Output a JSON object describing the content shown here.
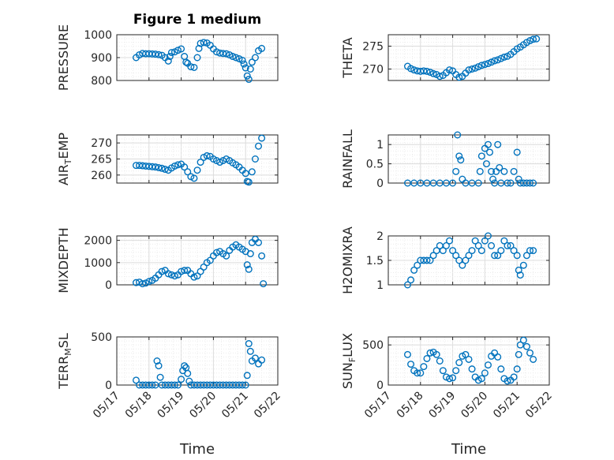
{
  "figure": {
    "title": "Figure 1 medium",
    "marker_color": "#0072BD",
    "x_ticks": [
      "05/17",
      "05/18",
      "05/19",
      "05/20",
      "05/21",
      "05/22"
    ],
    "x_range": [
      "2022-05-17",
      "2022-05-22"
    ]
  },
  "chart_data": [
    {
      "type": "scatter",
      "name": "PRESSURE",
      "ylabel": "PRESSURE",
      "title": "Figure 1 medium",
      "xlabel": "",
      "ylim": [
        800,
        1000
      ],
      "yticks": [
        800,
        900,
        1000
      ],
      "grid": true,
      "x": [
        17.6,
        17.7,
        17.8,
        17.9,
        18.0,
        18.1,
        18.2,
        18.3,
        18.4,
        18.5,
        18.6,
        18.65,
        18.7,
        18.8,
        18.9,
        19.0,
        19.1,
        19.15,
        19.2,
        19.3,
        19.4,
        19.5,
        19.55,
        19.6,
        19.7,
        19.8,
        19.9,
        20.0,
        20.1,
        20.2,
        20.3,
        20.4,
        20.5,
        20.6,
        20.7,
        20.8,
        20.9,
        20.95,
        21.0,
        21.05,
        21.1,
        21.15,
        21.2,
        21.3,
        21.4,
        21.5
      ],
      "y": [
        900,
        912,
        918,
        917,
        917,
        916,
        915,
        913,
        910,
        900,
        885,
        905,
        922,
        925,
        932,
        938,
        905,
        880,
        875,
        860,
        857,
        900,
        940,
        962,
        966,
        964,
        954,
        938,
        925,
        920,
        918,
        917,
        912,
        905,
        900,
        895,
        888,
        872,
        855,
        820,
        805,
        850,
        880,
        900,
        930,
        940
      ]
    },
    {
      "type": "scatter",
      "name": "THETA",
      "ylabel": "THETA",
      "title": "",
      "xlabel": "",
      "ylim": [
        267.5,
        277.5
      ],
      "yticks": [
        270,
        275
      ],
      "grid": true,
      "x": [
        17.6,
        17.7,
        17.8,
        17.9,
        18.0,
        18.1,
        18.2,
        18.3,
        18.4,
        18.5,
        18.6,
        18.7,
        18.8,
        18.9,
        19.0,
        19.1,
        19.2,
        19.3,
        19.4,
        19.5,
        19.6,
        19.7,
        19.8,
        19.9,
        20.0,
        20.1,
        20.2,
        20.3,
        20.4,
        20.5,
        20.6,
        20.7,
        20.8,
        20.9,
        21.0,
        21.1,
        21.2,
        21.3,
        21.4,
        21.5,
        21.6
      ],
      "y": [
        270.6,
        270.1,
        269.8,
        269.6,
        269.5,
        269.6,
        269.5,
        269.3,
        269.0,
        268.8,
        268.4,
        268.6,
        269.2,
        269.8,
        269.6,
        268.8,
        268.2,
        268.4,
        269.1,
        269.8,
        270.0,
        270.2,
        270.5,
        270.8,
        271.0,
        271.2,
        271.5,
        271.8,
        272.0,
        272.3,
        272.6,
        272.8,
        273.2,
        273.8,
        274.4,
        274.8,
        275.3,
        275.8,
        276.2,
        276.5,
        276.6
      ]
    },
    {
      "type": "scatter",
      "name": "AIR_TEMP",
      "ylabel": "AIR_TEMP",
      "title": "",
      "xlabel": "",
      "ylim": [
        257.5,
        272.5
      ],
      "yticks": [
        260,
        265,
        270
      ],
      "grid": true,
      "x": [
        17.6,
        17.7,
        17.8,
        17.9,
        18.0,
        18.1,
        18.2,
        18.3,
        18.4,
        18.5,
        18.6,
        18.7,
        18.8,
        18.9,
        19.0,
        19.1,
        19.2,
        19.3,
        19.4,
        19.5,
        19.6,
        19.7,
        19.8,
        19.9,
        20.0,
        20.1,
        20.2,
        20.3,
        20.4,
        20.5,
        20.6,
        20.7,
        20.8,
        20.9,
        21.0,
        21.05,
        21.1,
        21.2,
        21.3,
        21.4,
        21.5
      ],
      "y": [
        263.0,
        263.0,
        262.9,
        262.8,
        262.7,
        262.6,
        262.5,
        262.3,
        262.1,
        261.8,
        261.5,
        262.2,
        262.8,
        263.2,
        263.4,
        262.5,
        261.0,
        259.5,
        259.0,
        261.5,
        264.0,
        265.5,
        266.0,
        265.8,
        265.0,
        264.5,
        264.0,
        264.5,
        265.0,
        264.5,
        263.8,
        263.2,
        262.5,
        261.5,
        260.5,
        258.0,
        257.8,
        261.0,
        265.0,
        269.0,
        271.5
      ]
    },
    {
      "type": "scatter",
      "name": "RAINFALL",
      "ylabel": "RAINFALL",
      "title": "",
      "xlabel": "",
      "ylim": [
        0,
        1.25
      ],
      "yticks": [
        0,
        0.5,
        1
      ],
      "grid": true,
      "x": [
        17.6,
        17.8,
        18.0,
        18.2,
        18.4,
        18.6,
        18.8,
        19.0,
        19.1,
        19.15,
        19.2,
        19.25,
        19.3,
        19.4,
        19.6,
        19.8,
        19.85,
        19.9,
        20.0,
        20.05,
        20.1,
        20.15,
        20.2,
        20.25,
        20.3,
        20.35,
        20.4,
        20.45,
        20.5,
        20.6,
        20.7,
        20.8,
        20.9,
        21.0,
        21.05,
        21.1,
        21.2,
        21.3,
        21.4,
        21.5
      ],
      "y": [
        0,
        0,
        0,
        0,
        0,
        0,
        0,
        0,
        0.3,
        1.25,
        0.7,
        0.6,
        0.1,
        0,
        0,
        0,
        0.3,
        0.7,
        0.9,
        0.5,
        1.0,
        0.8,
        0.3,
        0.1,
        0,
        0.3,
        1.0,
        0.4,
        0,
        0.3,
        0,
        0,
        0.3,
        0.8,
        0.1,
        0,
        0,
        0,
        0,
        0
      ]
    },
    {
      "type": "scatter",
      "name": "MIXDEPTH",
      "ylabel": "MIXDEPTH",
      "title": "",
      "xlabel": "",
      "ylim": [
        0,
        2200
      ],
      "yticks": [
        0,
        1000,
        2000
      ],
      "grid": true,
      "x": [
        17.6,
        17.7,
        17.8,
        17.9,
        18.0,
        18.1,
        18.2,
        18.3,
        18.4,
        18.5,
        18.6,
        18.7,
        18.8,
        18.9,
        19.0,
        19.1,
        19.2,
        19.3,
        19.4,
        19.5,
        19.6,
        19.7,
        19.8,
        19.9,
        20.0,
        20.1,
        20.2,
        20.3,
        20.4,
        20.5,
        20.6,
        20.7,
        20.8,
        20.9,
        21.0,
        21.05,
        21.1,
        21.15,
        21.2,
        21.3,
        21.4,
        21.5,
        21.55
      ],
      "y": [
        100,
        120,
        50,
        80,
        150,
        200,
        300,
        450,
        600,
        650,
        500,
        450,
        400,
        450,
        600,
        650,
        650,
        500,
        350,
        400,
        600,
        800,
        1000,
        1100,
        1300,
        1450,
        1500,
        1400,
        1300,
        1550,
        1700,
        1800,
        1700,
        1600,
        1500,
        900,
        700,
        1400,
        1900,
        2050,
        1900,
        1300,
        50
      ]
    },
    {
      "type": "scatter",
      "name": "H2OMIXRA",
      "ylabel": "H2OMIXRA",
      "title": "",
      "xlabel": "",
      "ylim": [
        1,
        2
      ],
      "yticks": [
        1,
        1.5,
        2
      ],
      "grid": true,
      "x": [
        17.6,
        17.7,
        17.8,
        17.9,
        18.0,
        18.1,
        18.2,
        18.3,
        18.4,
        18.5,
        18.6,
        18.7,
        18.8,
        18.9,
        19.0,
        19.1,
        19.2,
        19.3,
        19.4,
        19.5,
        19.6,
        19.7,
        19.8,
        19.9,
        20.0,
        20.1,
        20.2,
        20.3,
        20.4,
        20.5,
        20.6,
        20.7,
        20.8,
        20.9,
        21.0,
        21.05,
        21.1,
        21.2,
        21.3,
        21.4,
        21.5
      ],
      "y": [
        1.0,
        1.1,
        1.3,
        1.4,
        1.5,
        1.5,
        1.5,
        1.5,
        1.6,
        1.7,
        1.8,
        1.7,
        1.8,
        1.9,
        1.7,
        1.6,
        1.5,
        1.4,
        1.5,
        1.6,
        1.7,
        1.9,
        1.8,
        1.7,
        1.9,
        2.0,
        1.8,
        1.6,
        1.6,
        1.7,
        1.9,
        1.8,
        1.8,
        1.7,
        1.6,
        1.3,
        1.2,
        1.4,
        1.6,
        1.7,
        1.7
      ]
    },
    {
      "type": "scatter",
      "name": "TERR_MSL",
      "ylabel": "TERR_MSL",
      "title": "",
      "xlabel": "Time",
      "ylim": [
        0,
        500
      ],
      "yticks": [
        0,
        500
      ],
      "grid": true,
      "x": [
        17.6,
        17.7,
        17.8,
        17.9,
        18.0,
        18.1,
        18.2,
        18.25,
        18.3,
        18.35,
        18.4,
        18.5,
        18.6,
        18.7,
        18.8,
        18.9,
        19.0,
        19.05,
        19.1,
        19.15,
        19.2,
        19.25,
        19.3,
        19.4,
        19.5,
        19.6,
        19.7,
        19.8,
        19.9,
        20.0,
        20.1,
        20.2,
        20.3,
        20.4,
        20.5,
        20.6,
        20.7,
        20.8,
        20.9,
        21.0,
        21.05,
        21.1,
        21.15,
        21.2,
        21.3,
        21.4,
        21.5
      ],
      "y": [
        50,
        0,
        0,
        0,
        0,
        0,
        0,
        250,
        200,
        80,
        0,
        0,
        0,
        0,
        0,
        0,
        60,
        150,
        200,
        180,
        120,
        40,
        0,
        0,
        0,
        0,
        0,
        0,
        0,
        0,
        0,
        0,
        0,
        0,
        0,
        0,
        0,
        0,
        0,
        0,
        100,
        430,
        350,
        250,
        280,
        220,
        260
      ]
    },
    {
      "type": "scatter",
      "name": "SUN_FLUX",
      "ylabel": "SUN_FLUX",
      "title": "",
      "xlabel": "Time",
      "ylim": [
        0,
        600
      ],
      "yticks": [
        0,
        500
      ],
      "grid": true,
      "x": [
        17.6,
        17.7,
        17.8,
        17.9,
        18.0,
        18.1,
        18.2,
        18.3,
        18.4,
        18.5,
        18.6,
        18.7,
        18.8,
        18.9,
        19.0,
        19.1,
        19.2,
        19.3,
        19.4,
        19.5,
        19.6,
        19.7,
        19.8,
        19.9,
        20.0,
        20.1,
        20.2,
        20.3,
        20.4,
        20.5,
        20.6,
        20.7,
        20.8,
        20.9,
        21.0,
        21.05,
        21.1,
        21.2,
        21.3,
        21.4,
        21.5
      ],
      "y": [
        380,
        260,
        180,
        150,
        150,
        230,
        330,
        400,
        410,
        380,
        300,
        180,
        100,
        80,
        90,
        180,
        280,
        360,
        380,
        320,
        200,
        100,
        60,
        80,
        150,
        250,
        360,
        400,
        350,
        200,
        80,
        50,
        60,
        100,
        200,
        380,
        500,
        560,
        480,
        400,
        320
      ]
    }
  ]
}
